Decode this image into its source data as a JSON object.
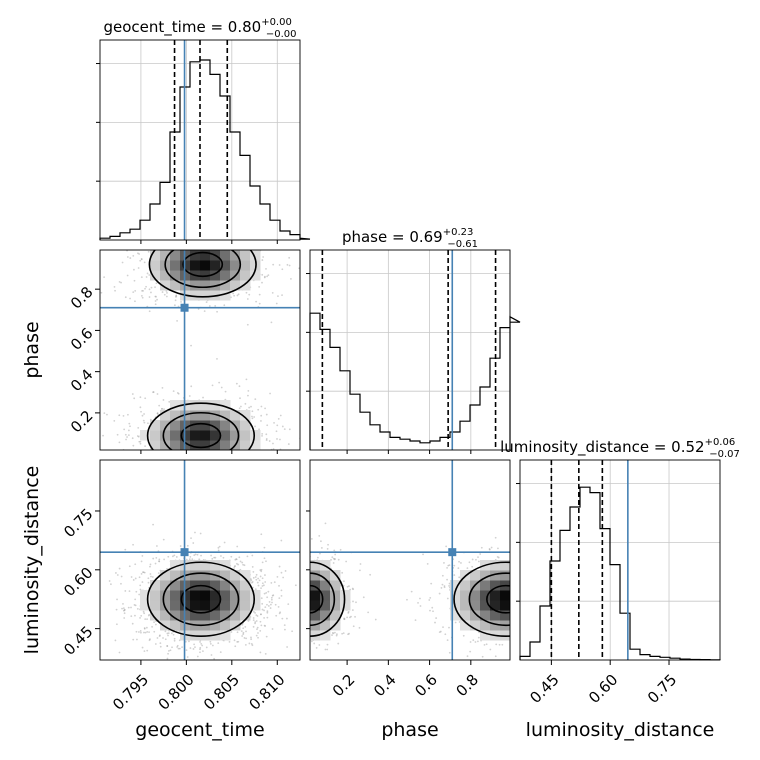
{
  "chart_data": {
    "type": "corner",
    "parameters": [
      {
        "key": "geocent_time",
        "axis_label": "geocent_time",
        "title_main": "geocent_time = 0.80",
        "title_sup": "+0.00",
        "title_sub": "−0.00",
        "truth": 0.7998,
        "quantiles": [
          0.7987,
          0.8015,
          0.8045
        ]
      },
      {
        "key": "phase",
        "axis_label": "phase",
        "title_main": "phase = 0.69",
        "title_sup": "+0.23",
        "title_sub": "−0.61",
        "truth": 0.71,
        "quantiles": [
          0.08,
          0.69,
          0.92
        ]
      },
      {
        "key": "luminosity_distance",
        "axis_label": "luminosity_distance",
        "title_main": "luminosity_distance = 0.52",
        "title_sup": "+0.06",
        "title_sub": "−0.07",
        "truth": 0.645,
        "quantiles": [
          0.45,
          0.52,
          0.58
        ]
      }
    ],
    "ranges": {
      "geocent_time": [
        0.7905,
        0.8125
      ],
      "phase": [
        0.02,
        0.99
      ],
      "luminosity_distance": [
        0.37,
        0.88
      ]
    },
    "ticks": {
      "geocent_time": [
        "0.795",
        "0.800",
        "0.805",
        "0.810"
      ],
      "phase": [
        "0.2",
        "0.4",
        "0.6",
        "0.8"
      ],
      "luminosity_distance": [
        "0.45",
        "0.60",
        "0.75"
      ]
    },
    "histograms": {
      "geocent_time": {
        "bin_width": 0.0011,
        "counts": [
          0.01,
          0.02,
          0.04,
          0.06,
          0.11,
          0.2,
          0.32,
          0.6,
          0.85,
          0.99,
          1.0,
          0.92,
          0.8,
          0.6,
          0.47,
          0.3,
          0.2,
          0.11,
          0.05,
          0.03,
          0.01,
          0.005
        ]
      },
      "phase": {
        "bin_width": 0.0485,
        "counts": [
          0.76,
          0.67,
          0.57,
          0.44,
          0.31,
          0.21,
          0.14,
          0.1,
          0.07,
          0.06,
          0.05,
          0.04,
          0.05,
          0.07,
          0.1,
          0.16,
          0.25,
          0.35,
          0.51,
          0.68,
          0.74,
          0.71
        ]
      },
      "luminosity_distance": {
        "bin_width": 0.0255,
        "counts": [
          0.02,
          0.1,
          0.3,
          0.55,
          0.72,
          0.85,
          0.96,
          0.93,
          0.73,
          0.53,
          0.26,
          0.06,
          0.03,
          0.02,
          0.015,
          0.01,
          0.005,
          0.003,
          0.002,
          0.001
        ]
      }
    },
    "density_2d": [
      {
        "x": "geocent_time",
        "y": "phase",
        "modes": [
          {
            "cx": 0.8018,
            "cy": 0.92,
            "sx": 0.0028,
            "sy": 0.075,
            "w": 1.0
          },
          {
            "cx": 0.8016,
            "cy": 0.09,
            "sx": 0.0028,
            "sy": 0.075,
            "w": 0.95
          }
        ]
      },
      {
        "x": "geocent_time",
        "y": "luminosity_distance",
        "modes": [
          {
            "cx": 0.8016,
            "cy": 0.525,
            "sx": 0.0028,
            "sy": 0.045,
            "w": 1.0
          }
        ]
      },
      {
        "x": "phase",
        "y": "luminosity_distance",
        "modes": [
          {
            "cx": 0.02,
            "cy": 0.525,
            "sx": 0.08,
            "sy": 0.045,
            "w": 1.0
          },
          {
            "cx": 0.97,
            "cy": 0.525,
            "sx": 0.12,
            "sy": 0.045,
            "w": 1.0
          }
        ]
      }
    ],
    "truth_color": "#4682b4",
    "line_color": "#000000",
    "grid": true,
    "legend": "none"
  }
}
